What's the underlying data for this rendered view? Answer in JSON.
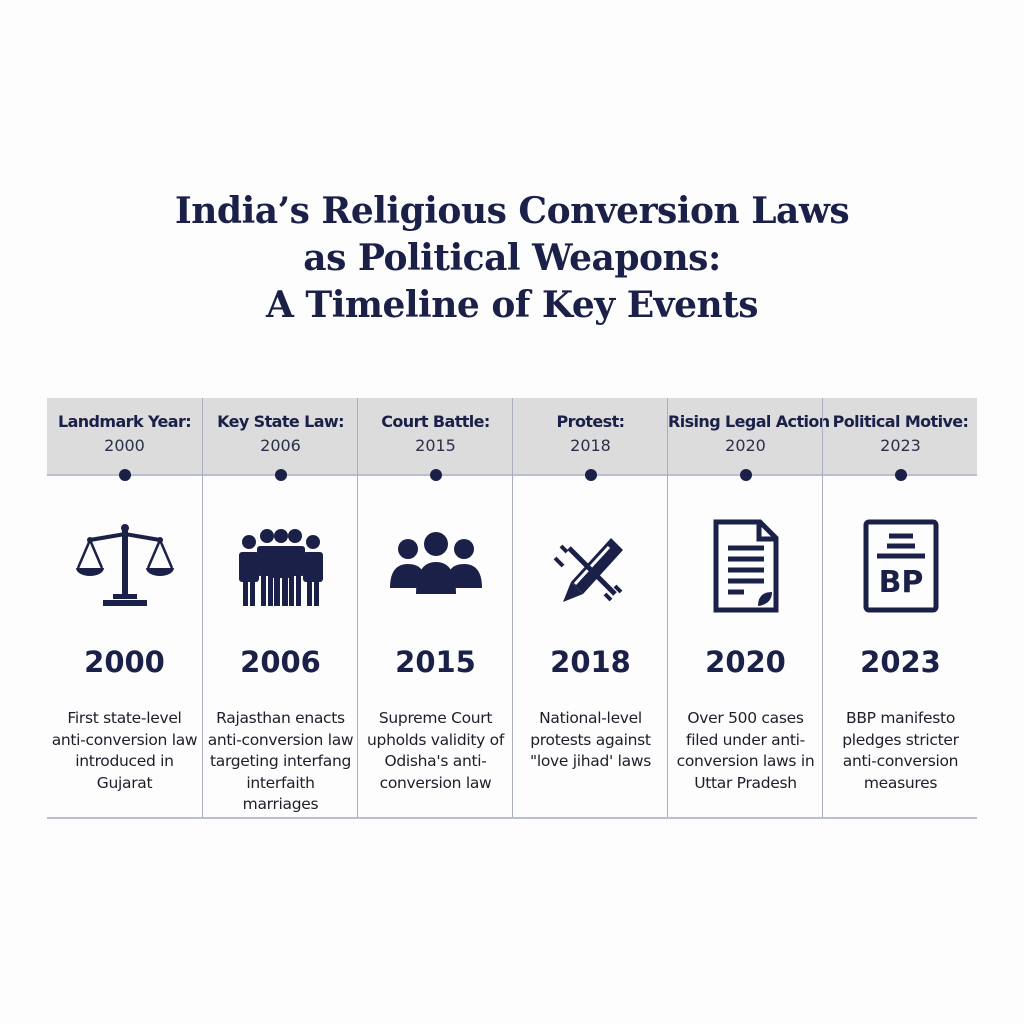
{
  "title": {
    "lines": [
      "India’s Religious Conversion Laws",
      "as Political Weapons:",
      "A Timeline of Key Events"
    ]
  },
  "colors": {
    "navy": "#1b2048",
    "header_band": "#dcdcdc",
    "divider": "#a9afbf"
  },
  "events": [
    {
      "label": "Landmark Year:",
      "header_year": "2000",
      "icon": "scales-of-justice-icon",
      "year": "2000",
      "description": "First state-level anti-conversion law introduced in Gujarat"
    },
    {
      "label": "Key State Law:",
      "header_year": "2006",
      "icon": "crowd-of-people-icon",
      "year": "2006",
      "description": "Rajasthan enacts anti-conversion law targeting interfang interfaith marriages"
    },
    {
      "label": "Court Battle:",
      "header_year": "2015",
      "icon": "group-of-people-icon",
      "year": "2015",
      "description": "Supreme Court upholds validity of Odisha's anti-conversion law"
    },
    {
      "label": "Protest:",
      "header_year": "2018",
      "icon": "crossed-out-pen-icon",
      "year": "2018",
      "description": "National-level protests against \"love jihad' laws"
    },
    {
      "label": "Rising Legal Action",
      "header_year": "2020",
      "icon": "document-icon",
      "year": "2020",
      "description": "Over 500 cases filed under anti-conversion laws in Uttar Pradesh"
    },
    {
      "label": "Political Motive:",
      "header_year": "2023",
      "icon": "bp-manifesto-icon",
      "year": "2023",
      "description": "BBP manifesto pledges stricter anti-conversion measures"
    }
  ]
}
